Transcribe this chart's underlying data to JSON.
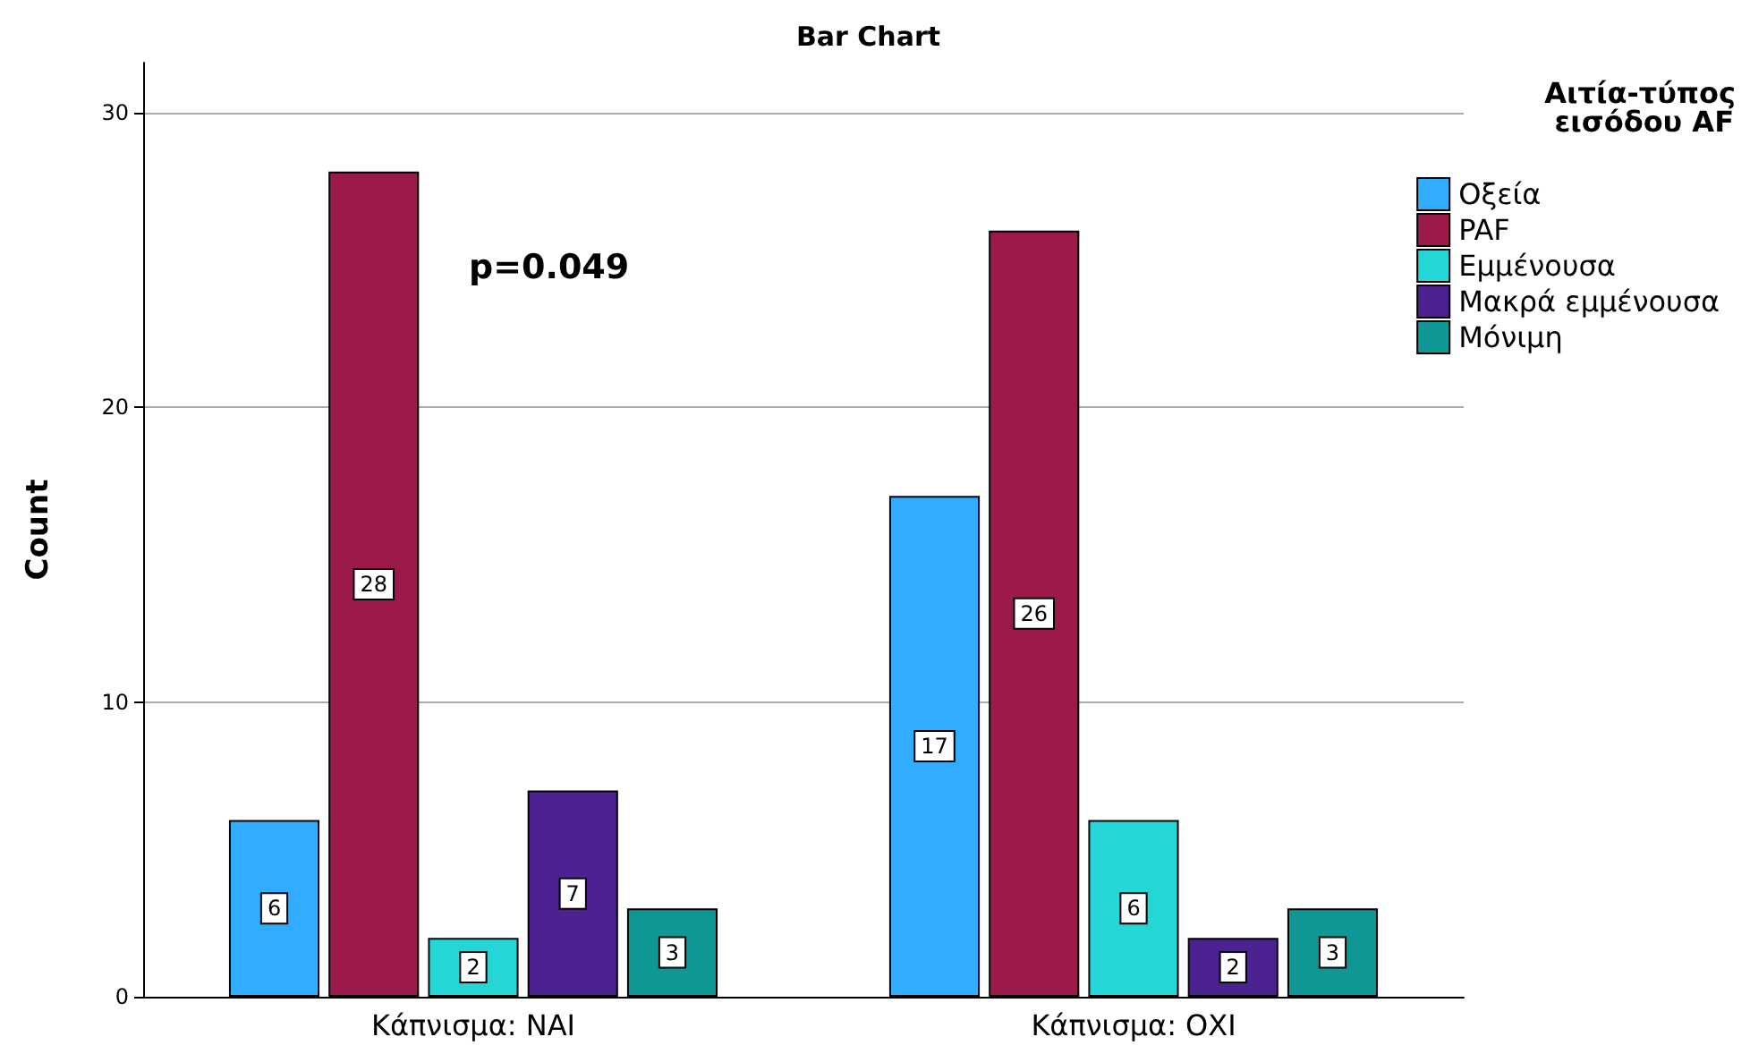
{
  "chart_data": {
    "type": "bar",
    "title": "Bar Chart",
    "ylabel": "Count",
    "legend_title": "Αιτία-τύπος εισόδου AF",
    "categories": [
      "Κάπνισμα: ΝΑΙ",
      "Κάπνισμα: ΟΧΙ"
    ],
    "series": [
      {
        "name": "Οξεία",
        "color": "#31acff",
        "values": [
          6,
          17
        ]
      },
      {
        "name": "PAF",
        "color": "#9c1a4b",
        "values": [
          28,
          26
        ]
      },
      {
        "name": "Εμμένουσα",
        "color": "#24d6d6",
        "values": [
          2,
          6
        ]
      },
      {
        "name": "Μακρά εμμένουσα",
        "color": "#4c2290",
        "values": [
          7,
          2
        ]
      },
      {
        "name": "Μόνιμη",
        "color": "#0e9794",
        "values": [
          3,
          3
        ]
      }
    ],
    "ylim": [
      0,
      31.7
    ],
    "yticks": [
      0,
      10,
      20,
      30
    ],
    "grid": "y",
    "legend": "top right",
    "data_labels": true,
    "annotations": [
      "p=0.049"
    ]
  }
}
